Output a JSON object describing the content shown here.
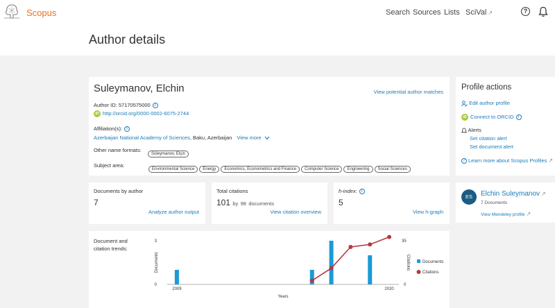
{
  "brand": "Scopus",
  "nav": {
    "search": "Search",
    "sources": "Sources",
    "lists": "Lists",
    "scival": "SciVal",
    "external_glyph": "↗"
  },
  "page_title": "Author details",
  "author": {
    "name": "Suleymanov, Elchin",
    "view_potential": "View potential author matches",
    "author_id": "Author ID: 57170575000",
    "orcid": "http://orcid.org/0000-0002-6075-2744",
    "affiliation_label": "Affiliation(s):",
    "affiliation_link": "Azerbaijan National Academy of Sciences",
    "affiliation_rest": ", Baku, Azerbaijan",
    "view_more": "View more",
    "other_names_label": "Other name formats:",
    "other_names": [
      "Süleymanov, Elçin"
    ],
    "subject_label": "Subject area:",
    "subjects": [
      "Environmental Science",
      "Energy",
      "Economics, Econometrics and Finance",
      "Computer Science",
      "Engineering",
      "Social Sciences"
    ]
  },
  "profile_actions": {
    "title": "Profile actions",
    "edit": "Edit author profile",
    "orcid": "Connect to ORCID",
    "alerts": "Alerts",
    "citation_alert": "Set citation alert",
    "document_alert": "Set document alert",
    "learn_more": "Learn more about Scopus Profiles"
  },
  "stats": {
    "documents": {
      "label": "Documents by author",
      "value": "7",
      "link": "Analyze author output"
    },
    "citations": {
      "label": "Total citations",
      "value": "101",
      "by": "by",
      "docs_count": "98",
      "docs_suffix": "documents",
      "link": "View citation overview"
    },
    "hindex": {
      "label": "h-index:",
      "value": "5",
      "link": "View h-graph"
    }
  },
  "mendeley": {
    "initials": "ES",
    "name": "Elchin Suleymanov",
    "docs": "7 Documents",
    "link": "View Mendeley profile"
  },
  "chart_data": {
    "type": "bar+line",
    "title": "Document and citation trends:",
    "xlabel": "Years",
    "ylabel_left": "Documents",
    "ylabel_right": "Citations",
    "x_tick_labels": [
      "2009",
      "2020"
    ],
    "y_left_ticks": [
      "0",
      "3"
    ],
    "y_right_ticks": [
      "0",
      "35"
    ],
    "ylim_left": [
      0,
      3
    ],
    "ylim_right": [
      0,
      35
    ],
    "years": [
      2009,
      2016,
      2017,
      2018,
      2019,
      2020
    ],
    "documents": [
      1,
      1,
      3,
      0,
      2,
      0
    ],
    "citations": [
      null,
      3,
      13,
      30,
      32,
      38
    ],
    "legend": [
      "Documents",
      "Citations"
    ],
    "colors": {
      "documents": "#1a9bd7",
      "citations": "#b5393e"
    }
  }
}
